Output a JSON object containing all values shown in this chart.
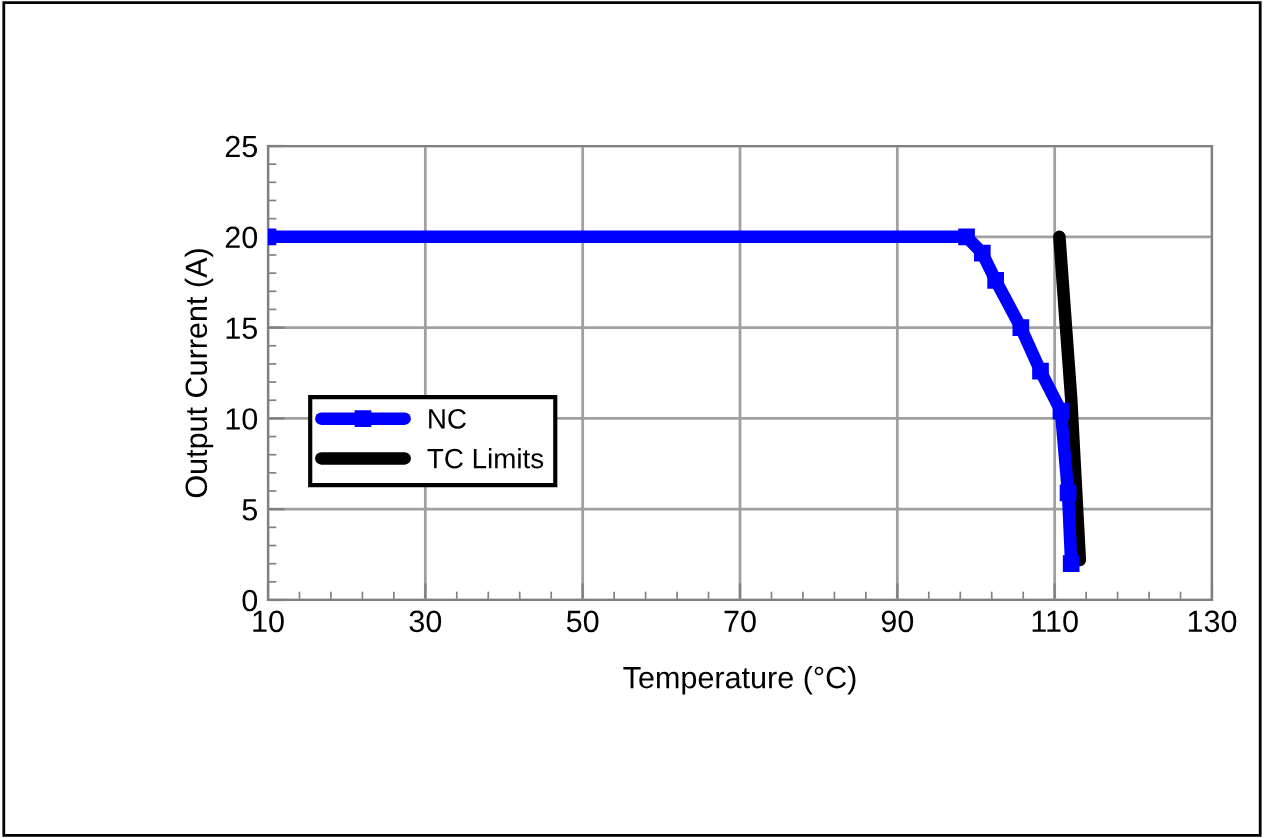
{
  "chart_data": {
    "type": "line",
    "xlabel": "Temperature (°C)",
    "ylabel": "Output Current (A)",
    "xlim": [
      10,
      130
    ],
    "xticks": [
      10,
      30,
      50,
      70,
      90,
      110,
      130
    ],
    "ylim": [
      0,
      25
    ],
    "yticks": [
      0,
      5,
      10,
      15,
      20,
      25
    ],
    "grid": true,
    "legend": "left",
    "series": [
      {
        "name": "NC",
        "color": "#0000ff",
        "marker": "square",
        "x": [
          10,
          98.8,
          100.8,
          102.5,
          105.7,
          108.2,
          110.8,
          111.7,
          112.1
        ],
        "values": [
          20,
          20,
          19.1,
          17.6,
          15,
          12.6,
          10.4,
          5.9,
          2
        ]
      },
      {
        "name": "TC Limits",
        "color": "#000000",
        "marker": "none",
        "x": [
          110.6,
          112.1,
          113.2
        ],
        "values": [
          20,
          11.1,
          2.2
        ]
      }
    ]
  }
}
